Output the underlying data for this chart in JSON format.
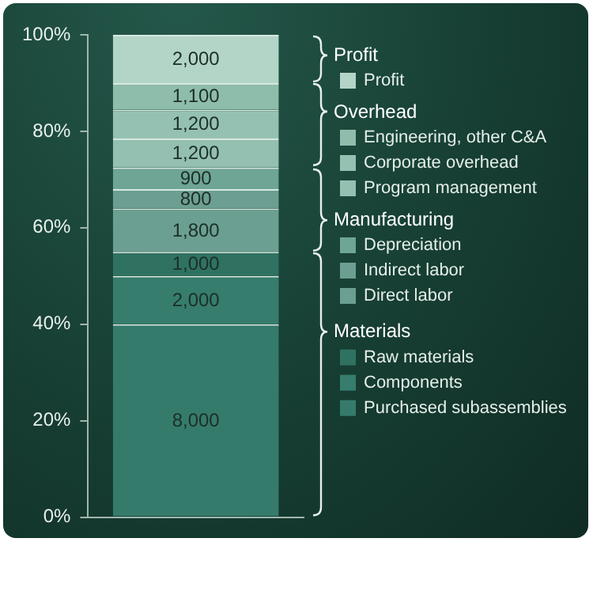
{
  "chart_data": {
    "type": "bar",
    "stacked": true,
    "categories": [
      null
    ],
    "series": [
      {
        "name": "Purchased subassemblies",
        "color": "#357b6c",
        "values": [
          40
        ]
      },
      {
        "name": "Components",
        "color": "#367d6d",
        "values": [
          10
        ]
      },
      {
        "name": "Raw materials",
        "color": "#2f7262",
        "values": [
          5
        ]
      },
      {
        "name": "Direct labor",
        "color": "#6b9f92",
        "values": [
          9
        ]
      },
      {
        "name": "Indirect labor",
        "color": "#6c9f92",
        "values": [
          4
        ]
      },
      {
        "name": "Depreciation",
        "color": "#6ea595",
        "values": [
          4.5
        ]
      },
      {
        "name": "Program management",
        "color": "#93c0b0",
        "values": [
          6
        ]
      },
      {
        "name": "Corporate overhead",
        "color": "#94c1b1",
        "values": [
          6
        ]
      },
      {
        "name": "Engineering, other C&A",
        "color": "#8ebdab",
        "values": [
          5.5
        ]
      },
      {
        "name": "Profit",
        "color": "#b3d5c8",
        "values": [
          10
        ]
      }
    ],
    "ylim": [
      0,
      100
    ],
    "yticks": [
      {
        "value": 0,
        "label": "0%"
      },
      {
        "value": 20,
        "label": "20%"
      },
      {
        "value": 40,
        "label": "40%"
      },
      {
        "value": 60,
        "label": "60%"
      },
      {
        "value": 80,
        "label": "80%"
      },
      {
        "value": 100,
        "label": "100%"
      }
    ],
    "tick_labels": "y",
    "grid": false,
    "legend": "right",
    "annotations": [
      "Profit",
      "Overhead",
      "Manufacturing",
      "Materials",
      "8,000",
      "2,000",
      "1,000",
      "1,800",
      "800",
      "900",
      "1,200",
      "1,200",
      "1,100",
      "2,000"
    ]
  }
}
